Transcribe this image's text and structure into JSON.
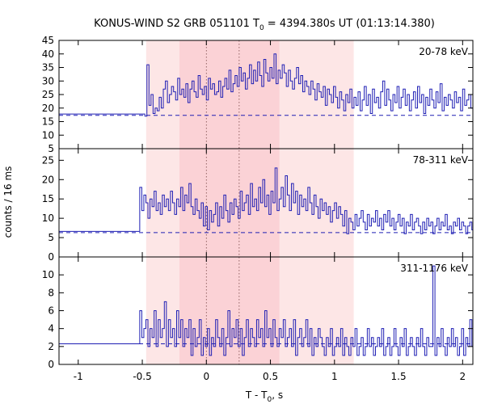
{
  "chart_data": {
    "type": "line",
    "title": "KONUS-WIND S2 GRB 051101 T",
    "title_sub": "0",
    "title_rest": " = 4394.380s UT (01:13:14.380)",
    "xlabel": "T - T",
    "xlabel_sub": "0",
    "xlabel_rest": ", s",
    "ylabel": "counts / 16 ms",
    "xlim": [
      -1.15,
      2.08
    ],
    "x_ticks": [
      -1,
      -0.5,
      0,
      0.5,
      1,
      1.5,
      2
    ],
    "x_tick_labels": [
      "-1",
      "-0.5",
      "0",
      "0.5",
      "1",
      "1.5",
      "2"
    ],
    "shaded_intervals": [
      {
        "from": -0.47,
        "to": 1.15,
        "color": "#fde6e6"
      },
      {
        "from": -0.21,
        "to": 0.57,
        "color": "#fbd2d6"
      }
    ],
    "dotted_lines_x": [
      0,
      0.256
    ],
    "bin_width": 0.016,
    "step_line_color": "#1f1fb4",
    "panels": [
      {
        "label": "20-78 keV",
        "ylim": [
          5,
          45
        ],
        "y_ticks": [
          5,
          10,
          15,
          20,
          25,
          30,
          35,
          40,
          45
        ],
        "y_tick_labels": [
          "5",
          "10",
          "15",
          "20",
          "25",
          "30",
          "35",
          "40",
          "45"
        ],
        "background_level": 17.8,
        "dashed_level": 17.3,
        "pre_burst_start": -1.15,
        "burst_start": -0.48,
        "values": [
          17,
          36,
          21,
          25,
          18,
          20,
          19,
          24,
          20,
          27,
          30,
          22,
          25,
          28,
          26,
          23,
          31,
          25,
          27,
          24,
          29,
          22,
          27,
          30,
          26,
          24,
          32,
          27,
          25,
          28,
          23,
          31,
          27,
          29,
          25,
          26,
          30,
          24,
          28,
          31,
          27,
          34,
          26,
          29,
          32,
          28,
          35,
          30,
          33,
          27,
          31,
          36,
          29,
          34,
          30,
          37,
          32,
          28,
          38,
          33,
          30,
          35,
          31,
          40,
          29,
          34,
          31,
          36,
          33,
          28,
          34,
          30,
          27,
          31,
          35,
          29,
          32,
          26,
          30,
          28,
          25,
          30,
          27,
          23,
          29,
          26,
          24,
          28,
          21,
          27,
          25,
          22,
          28,
          24,
          20,
          26,
          23,
          19,
          25,
          22,
          27,
          20,
          24,
          21,
          26,
          19,
          23,
          28,
          21,
          25,
          18,
          27,
          22,
          24,
          20,
          26,
          30,
          21,
          27,
          23,
          19,
          25,
          22,
          28,
          20,
          24,
          27,
          21,
          25,
          19,
          23,
          26,
          20,
          28,
          22,
          25,
          18,
          24,
          21,
          27,
          23,
          20,
          26,
          22,
          29,
          19,
          24,
          21,
          25,
          23,
          20,
          26,
          22,
          24,
          19,
          27,
          21,
          23,
          25,
          20,
          24,
          22,
          26,
          21,
          23,
          19,
          25,
          22,
          20,
          24,
          21,
          23,
          25,
          20,
          22,
          24,
          21,
          26,
          22,
          23,
          20,
          24,
          21,
          25,
          22,
          23,
          19,
          24,
          22,
          21,
          27,
          20,
          23,
          25,
          21,
          28
        ]
      },
      {
        "label": "78-311 keV",
        "ylim": [
          0,
          28
        ],
        "y_ticks": [
          0,
          5,
          10,
          15,
          20,
          25
        ],
        "y_tick_labels": [
          "0",
          "5",
          "10",
          "15",
          "20",
          "25"
        ],
        "background_level": 6.6,
        "dashed_level": 6.3,
        "pre_burst_start": -1.15,
        "burst_start": -0.52,
        "values": [
          18,
          12,
          16,
          14,
          10,
          15,
          13,
          17,
          12,
          14,
          11,
          16,
          13,
          15,
          12,
          17,
          14,
          11,
          15,
          13,
          18,
          12,
          16,
          14,
          19,
          13,
          11,
          15,
          12,
          10,
          14,
          8,
          13,
          7,
          12,
          9,
          11,
          14,
          8,
          13,
          10,
          16,
          12,
          9,
          14,
          11,
          15,
          13,
          10,
          17,
          12,
          14,
          16,
          11,
          19,
          13,
          15,
          12,
          18,
          14,
          20,
          13,
          16,
          11,
          17,
          14,
          23,
          12,
          15,
          18,
          13,
          21,
          16,
          12,
          19,
          14,
          17,
          11,
          16,
          13,
          15,
          12,
          18,
          14,
          11,
          16,
          13,
          10,
          15,
          12,
          14,
          11,
          13,
          9,
          12,
          14,
          10,
          13,
          11,
          8,
          12,
          6,
          10,
          9,
          7,
          11,
          8,
          10,
          12,
          9,
          7,
          11,
          8,
          10,
          9,
          12,
          8,
          10,
          7,
          11,
          9,
          12,
          8,
          10,
          7,
          9,
          11,
          8,
          10,
          6,
          9,
          8,
          11,
          7,
          9,
          10,
          8,
          6,
          9,
          7,
          10,
          8,
          9,
          6,
          8,
          10,
          7,
          9,
          8,
          11,
          7,
          8,
          6,
          9,
          8,
          10,
          7,
          9,
          8,
          6,
          8,
          9,
          7,
          10,
          8,
          7,
          9,
          6,
          8,
          10,
          7,
          8,
          9,
          7,
          6,
          8,
          9,
          7,
          8,
          10,
          7,
          8,
          6,
          9,
          8,
          7,
          9,
          8,
          6,
          8,
          7,
          9,
          8,
          7,
          9,
          8
        ]
      },
      {
        "label": "311-1176 keV",
        "ylim": [
          0,
          12
        ],
        "y_ticks": [
          0,
          2,
          4,
          6,
          8,
          10
        ],
        "y_tick_labels": [
          "0",
          "2",
          "4",
          "6",
          "8",
          "10"
        ],
        "background_level": 2.3,
        "dashed_level": 2.3,
        "pre_burst_start": -1.15,
        "burst_start": -0.52,
        "values": [
          6,
          3,
          4,
          5,
          2,
          4,
          3,
          6,
          2,
          5,
          3,
          4,
          7,
          2,
          5,
          3,
          4,
          2,
          6,
          3,
          5,
          2,
          4,
          3,
          5,
          1,
          4,
          2,
          3,
          5,
          1,
          3,
          2,
          4,
          1,
          3,
          2,
          5,
          3,
          2,
          4,
          1,
          3,
          6,
          2,
          4,
          3,
          5,
          2,
          4,
          1,
          3,
          5,
          2,
          4,
          3,
          2,
          5,
          3,
          4,
          2,
          6,
          3,
          4,
          2,
          5,
          3,
          2,
          4,
          3,
          5,
          2,
          3,
          4,
          2,
          5,
          1,
          3,
          4,
          2,
          3,
          5,
          2,
          4,
          1,
          3,
          2,
          4,
          3,
          2,
          1,
          3,
          2,
          4,
          1,
          2,
          3,
          2,
          4,
          1,
          3,
          2,
          1,
          3,
          2,
          4,
          1,
          2,
          3,
          1,
          2,
          4,
          2,
          3,
          1,
          2,
          3,
          2,
          4,
          1,
          2,
          3,
          1,
          2,
          4,
          2,
          1,
          3,
          2,
          4,
          1,
          2,
          3,
          2,
          1,
          3,
          2,
          4,
          2,
          1,
          3,
          2,
          2,
          11,
          1,
          3,
          2,
          4,
          2,
          1,
          3,
          2,
          4,
          2,
          3,
          1,
          2,
          4,
          1,
          3,
          2,
          5,
          2,
          3,
          1,
          2,
          6,
          2,
          3,
          1,
          2,
          4,
          2,
          3,
          1,
          2,
          3,
          2,
          5,
          1,
          2,
          3,
          2,
          4,
          1,
          3,
          2,
          3,
          1,
          2,
          4,
          2,
          3,
          2,
          1,
          3,
          2,
          4,
          2,
          3
        ]
      }
    ]
  }
}
